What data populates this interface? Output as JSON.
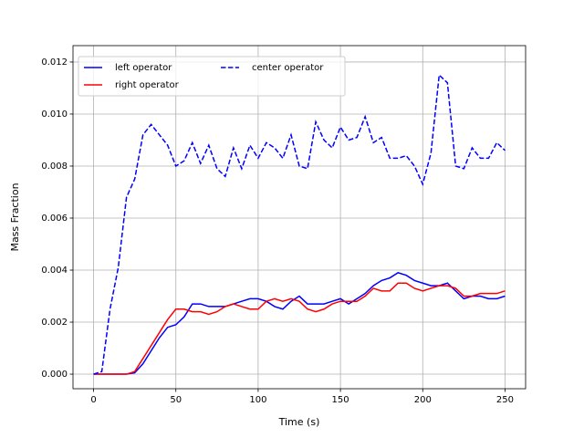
{
  "chart_data": {
    "type": "line",
    "xlabel": "Time (s)",
    "ylabel": "Mass Fraction",
    "x": [
      0,
      5,
      10,
      15,
      20,
      25,
      30,
      35,
      40,
      45,
      50,
      55,
      60,
      65,
      70,
      75,
      80,
      85,
      90,
      95,
      100,
      105,
      110,
      115,
      120,
      125,
      130,
      135,
      140,
      145,
      150,
      155,
      160,
      165,
      170,
      175,
      180,
      185,
      190,
      195,
      200,
      205,
      210,
      215,
      220,
      225,
      230,
      235,
      240,
      245,
      250
    ],
    "series": [
      {
        "name": "left operator",
        "color": "#0000ff",
        "linestyle": "solid",
        "values": [
          0,
          0,
          0,
          0,
          0,
          5e-05,
          0.0004,
          0.0009,
          0.0014,
          0.0018,
          0.0019,
          0.0022,
          0.0027,
          0.0027,
          0.0026,
          0.0026,
          0.0026,
          0.0027,
          0.0028,
          0.0029,
          0.0029,
          0.0028,
          0.0026,
          0.0025,
          0.0028,
          0.003,
          0.0027,
          0.0027,
          0.0027,
          0.0028,
          0.0029,
          0.0027,
          0.0029,
          0.0031,
          0.0034,
          0.0036,
          0.0037,
          0.0039,
          0.0038,
          0.0036,
          0.0035,
          0.0034,
          0.0034,
          0.0035,
          0.0032,
          0.0029,
          0.003,
          0.003,
          0.0029,
          0.0029,
          0.003
        ]
      },
      {
        "name": "right operator",
        "color": "#ff0000",
        "linestyle": "solid",
        "values": [
          0,
          0,
          0,
          0,
          0,
          0.0001,
          0.0006,
          0.0011,
          0.0016,
          0.0021,
          0.0025,
          0.0025,
          0.0024,
          0.0024,
          0.0023,
          0.0024,
          0.0026,
          0.0027,
          0.0026,
          0.0025,
          0.0025,
          0.0028,
          0.0029,
          0.0028,
          0.0029,
          0.0028,
          0.0025,
          0.0024,
          0.0025,
          0.0027,
          0.0028,
          0.0028,
          0.0028,
          0.003,
          0.0033,
          0.0032,
          0.0032,
          0.0035,
          0.0035,
          0.0033,
          0.0032,
          0.0033,
          0.0034,
          0.0034,
          0.0033,
          0.003,
          0.003,
          0.0031,
          0.0031,
          0.0031,
          0.0032
        ]
      },
      {
        "name": "center operator",
        "color": "#0000ff",
        "linestyle": "dashed",
        "values": [
          0,
          0.0001,
          0.0025,
          0.0041,
          0.0068,
          0.0075,
          0.0092,
          0.0096,
          0.0092,
          0.0088,
          0.008,
          0.0082,
          0.0089,
          0.0081,
          0.0088,
          0.0079,
          0.0076,
          0.0087,
          0.0079,
          0.0088,
          0.0083,
          0.0089,
          0.0087,
          0.0083,
          0.0092,
          0.008,
          0.0079,
          0.0097,
          0.009,
          0.0087,
          0.0095,
          0.009,
          0.0091,
          0.0099,
          0.0089,
          0.0091,
          0.0083,
          0.0083,
          0.0084,
          0.008,
          0.0073,
          0.0085,
          0.0115,
          0.0112,
          0.008,
          0.0079,
          0.0087,
          0.0083,
          0.0083,
          0.0089,
          0.0086
        ]
      }
    ],
    "xlim": [
      -12.5,
      262.5
    ],
    "ylim": [
      -0.00056,
      0.01263
    ],
    "xticks": [
      0,
      50,
      100,
      150,
      200,
      250
    ],
    "yticks": [
      {
        "value": 0,
        "label": "0.000"
      },
      {
        "value": 0.002,
        "label": "0.002"
      },
      {
        "value": 0.004,
        "label": "0.004"
      },
      {
        "value": 0.006,
        "label": "0.006"
      },
      {
        "value": 0.008,
        "label": "0.008"
      },
      {
        "value": 0.01,
        "label": "0.010"
      },
      {
        "value": 0.012,
        "label": "0.012"
      }
    ],
    "grid": true,
    "legend_loc": "upper left"
  }
}
